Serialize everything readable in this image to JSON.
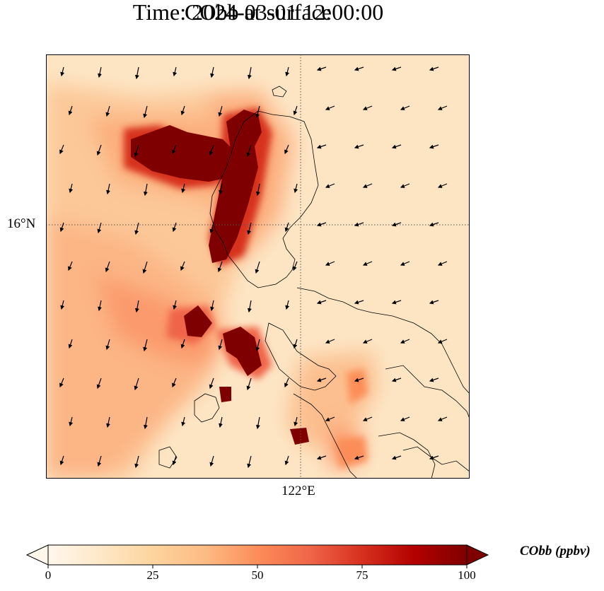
{
  "title": {
    "line1": "CObb at surface",
    "line2": "Time: 2024-03-01 12:00:00"
  },
  "axes": {
    "lat_label": "16°N",
    "lon_label": "122°E",
    "gridline_style": "dotted"
  },
  "colorbar": {
    "label": "CObb (ppbv)",
    "ticks": [
      "0",
      "25",
      "50",
      "75",
      "100"
    ],
    "range": [
      0,
      100
    ],
    "extend": "both",
    "colormap": "OrRd",
    "colors": [
      "#fff7ec",
      "#fee8c8",
      "#fdd49e",
      "#fdbb84",
      "#fc8d59",
      "#ef6548",
      "#d7301f",
      "#b30000",
      "#7f0000"
    ]
  },
  "map": {
    "background_color": "#fde4c3",
    "field": "CObb",
    "units": "ppbv",
    "overlay": "wind vectors",
    "coastline_color": "#000000"
  }
}
